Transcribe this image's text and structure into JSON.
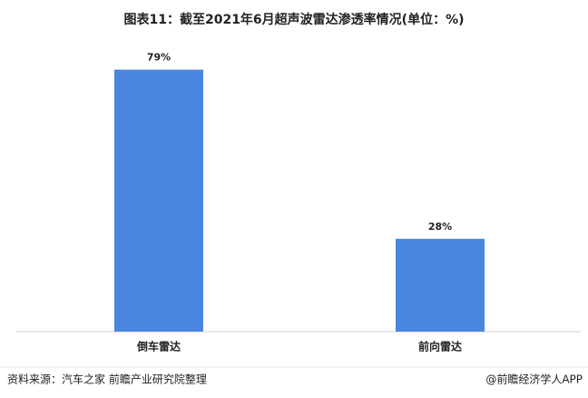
{
  "chart_data": {
    "type": "bar",
    "title": "图表11：截至2021年6月超声波雷达渗透率情况(单位：%)",
    "categories": [
      "倒车雷达",
      "前向雷达"
    ],
    "values": [
      79,
      28
    ],
    "value_labels": [
      "79%",
      "28%"
    ],
    "color": "#4a86e0",
    "ylim": [
      0,
      100
    ]
  },
  "footer": {
    "source": "资料来源：汽车之家 前瞻产业研究院整理",
    "brand": "@前瞻经济学人APP"
  }
}
